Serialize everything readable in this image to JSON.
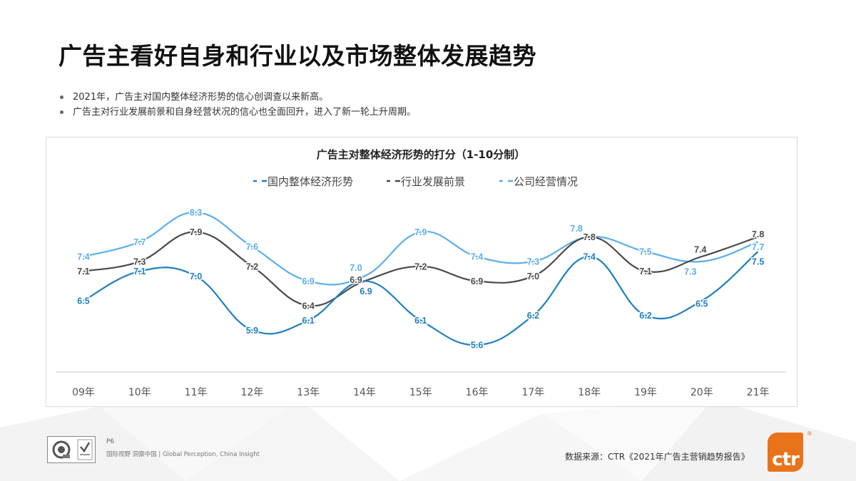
{
  "slide": {
    "title": "广告主看好自身和行业以及市场整体发展趋势",
    "bullets": [
      "2021年，广告主对国内整体经济形势的信心创调查以来新高。",
      "广告主对行业发展前景和自身经营状况的信心也全面回升，进入了新一轮上升周期。"
    ],
    "footer": {
      "page": "P6",
      "tagline": "国际视野 洞察中国 | Global Perception, China Insight",
      "source": "数据来源：CTR《2021年广告主营销趋势报告》",
      "brand_logo_text": "ctr",
      "brand_registered_mark": "®",
      "brand_color": "#e8731a"
    }
  },
  "chart_data": {
    "type": "line",
    "title": "广告主对整体经济形势的打分（1-10分制）",
    "xlabel": "",
    "ylabel": "",
    "categories": [
      "09年",
      "10年",
      "11年",
      "12年",
      "13年",
      "14年",
      "15年",
      "16年",
      "17年",
      "18年",
      "19年",
      "20年",
      "21年"
    ],
    "series": [
      {
        "name": "国内整体经济形势",
        "color": "#1f7fc0",
        "values": [
          6.5,
          7.1,
          7.0,
          5.9,
          6.1,
          6.9,
          6.1,
          5.6,
          6.2,
          7.4,
          6.2,
          6.5,
          7.5
        ]
      },
      {
        "name": "行业发展前景",
        "color": "#4a4a4a",
        "values": [
          7.1,
          7.3,
          7.9,
          7.2,
          6.4,
          6.9,
          7.2,
          6.9,
          7.0,
          7.8,
          7.1,
          7.4,
          7.8
        ]
      },
      {
        "name": "公司经营情况",
        "color": "#5aaef0",
        "values": [
          7.4,
          7.7,
          8.3,
          7.6,
          6.9,
          7.0,
          7.9,
          7.4,
          7.3,
          7.8,
          7.5,
          7.3,
          7.7
        ]
      }
    ],
    "legend_position": "top",
    "grid": false,
    "smooth": true,
    "data_labels": true,
    "ylim": [
      5.0,
      8.8
    ]
  }
}
